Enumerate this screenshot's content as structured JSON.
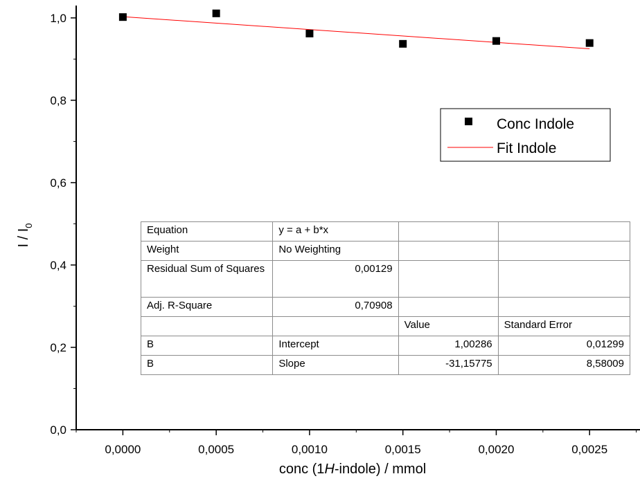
{
  "chart_data": {
    "type": "scatter",
    "xlabel": "conc (1H-indole) / mmol",
    "xlabel_parts": [
      "conc (1",
      "H",
      "-indole) / mmol"
    ],
    "ylabel": "I / I0",
    "ylabel_parts": [
      "I / I",
      "0"
    ],
    "xlim": [
      -0.00025,
      0.00277
    ],
    "ylim": [
      0.0,
      1.03
    ],
    "x_ticks": [
      0.0,
      0.0005,
      0.001,
      0.0015,
      0.002,
      0.0025
    ],
    "x_tick_labels": [
      "0,0000",
      "0,0005",
      "0,0010",
      "0,0015",
      "0,0020",
      "0,0025"
    ],
    "y_ticks": [
      0.0,
      0.2,
      0.4,
      0.6,
      0.8,
      1.0
    ],
    "y_tick_labels": [
      "0,0",
      "0,2",
      "0,4",
      "0,6",
      "0,8",
      "1,0"
    ],
    "series": [
      {
        "name": "Conc Indole",
        "kind": "scatter",
        "marker": "square",
        "color": "#000000",
        "x": [
          0.0,
          0.0005,
          0.001,
          0.0015,
          0.002,
          0.0025
        ],
        "y": [
          1.002,
          1.011,
          0.962,
          0.937,
          0.944,
          0.939
        ]
      },
      {
        "name": "Fit Indole",
        "kind": "line",
        "color": "#ff0000",
        "x": [
          0.0,
          0.0025
        ],
        "y": [
          1.00286,
          0.92497
        ]
      }
    ],
    "legend": {
      "position": "top-right",
      "entries": [
        "Conc Indole",
        "Fit Indole"
      ]
    },
    "grid": false
  },
  "fit_table": {
    "rows": [
      [
        "Equation",
        "y = a + b*x",
        "",
        ""
      ],
      [
        "Weight",
        "No Weighting",
        "",
        ""
      ],
      [
        "Residual Sum of Squares",
        "0,00129",
        "",
        ""
      ],
      [
        "Adj. R-Square",
        "0,70908",
        "",
        ""
      ],
      [
        "",
        "",
        "Value",
        "Standard Error"
      ],
      [
        "B",
        "Intercept",
        "1,00286",
        "0,01299"
      ],
      [
        "B",
        "Slope",
        "-31,15775",
        "8,58009"
      ]
    ]
  },
  "colors": {
    "axis": "#000000",
    "points": "#000000",
    "fit_line": "#ff0000",
    "table_border": "#8c8c8c"
  }
}
